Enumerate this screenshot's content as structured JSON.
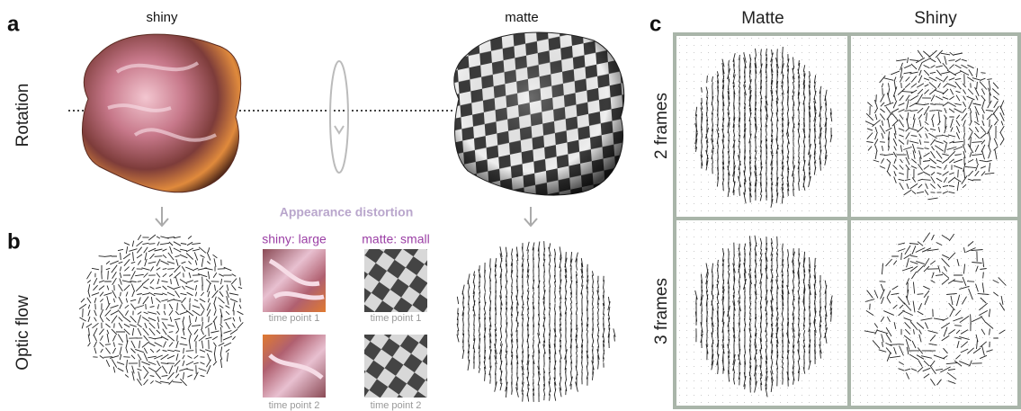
{
  "panels": {
    "a": {
      "label": "a",
      "row_label": "Rotation",
      "objects": [
        "shiny",
        "matte"
      ]
    },
    "b": {
      "label": "b",
      "row_label": "Optic flow",
      "heading": "Appearance distortion",
      "columns": [
        {
          "title": "shiny: large",
          "frames": [
            "time point 1",
            "time point 2"
          ]
        },
        {
          "title": "matte: small",
          "frames": [
            "time point 1",
            "time point 2"
          ]
        }
      ]
    },
    "c": {
      "label": "c",
      "columns": [
        "Matte",
        "Shiny"
      ],
      "rows": [
        "2 frames",
        "3 frames"
      ]
    }
  }
}
